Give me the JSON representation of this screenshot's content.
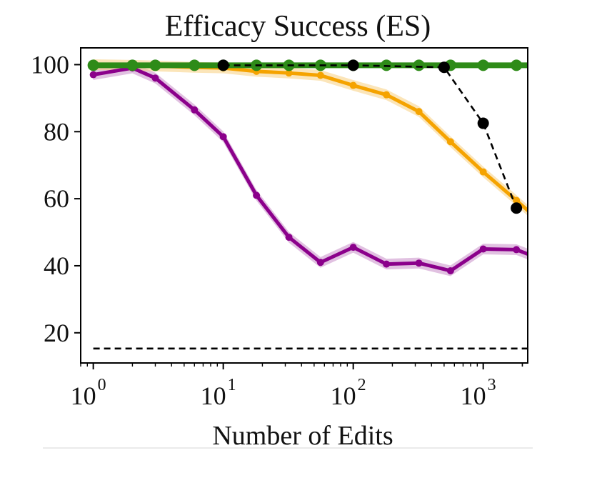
{
  "chart_data": {
    "type": "line",
    "title": "Efficacy Success (ES)",
    "xlabel": "Number of Edits",
    "ylabel": "",
    "xscale": "log",
    "xlim": [
      0.8,
      2200
    ],
    "ylim": [
      11,
      105
    ],
    "grid": false,
    "legend": "none",
    "yticks": [
      {
        "value": 20,
        "label": "20"
      },
      {
        "value": 40,
        "label": "40"
      },
      {
        "value": 60,
        "label": "60"
      },
      {
        "value": 80,
        "label": "80"
      },
      {
        "value": 100,
        "label": "100"
      }
    ],
    "xticks": [
      {
        "value": 1,
        "base": "10",
        "exp": "0"
      },
      {
        "value": 10,
        "base": "10",
        "exp": "1"
      },
      {
        "value": 100,
        "base": "10",
        "exp": "2"
      },
      {
        "value": 1000,
        "base": "10",
        "exp": "3"
      }
    ],
    "series": [
      {
        "color": "#8b008b",
        "band_color": "#c98ec9",
        "style": "solid",
        "markers": true,
        "x": [
          1,
          2,
          3,
          6,
          10,
          18,
          32,
          56,
          100,
          180,
          320,
          560,
          1000,
          1800,
          2200
        ],
        "y": [
          97.0,
          99.0,
          96.0,
          86.5,
          78.5,
          61.0,
          48.5,
          41.0,
          45.5,
          40.5,
          40.8,
          38.5,
          45.0,
          44.8,
          43.5
        ]
      },
      {
        "color": "#f5a300",
        "band_color": "#f8cf80",
        "style": "solid",
        "markers": true,
        "x": [
          1,
          2,
          3,
          6,
          10,
          18,
          32,
          56,
          100,
          180,
          320,
          560,
          1000,
          1800,
          2200
        ],
        "y": [
          100,
          99.8,
          99.6,
          99.2,
          99.0,
          98.0,
          97.5,
          96.8,
          93.8,
          91.0,
          86.0,
          77.0,
          68.0,
          59.5,
          56.5
        ]
      },
      {
        "color": "#2e8b18",
        "style": "solid",
        "markers": true,
        "x": [
          1,
          2,
          3,
          6,
          10,
          18,
          32,
          56,
          100,
          180,
          320,
          560,
          1000,
          1800,
          2200
        ],
        "y": [
          99.8,
          99.8,
          99.8,
          99.8,
          99.8,
          99.8,
          99.8,
          99.8,
          99.8,
          99.8,
          99.8,
          99.8,
          99.8,
          99.8,
          99.8
        ]
      },
      {
        "color": "#000000",
        "style": "dashed",
        "markers": true,
        "x": [
          10,
          100,
          500,
          1000,
          1800
        ],
        "y": [
          99.8,
          99.8,
          99.2,
          82.5,
          57.2
        ]
      },
      {
        "color": "#000000",
        "style": "dashed",
        "markers": false,
        "x": [
          1,
          2200
        ],
        "y": [
          15.3,
          15.3
        ]
      }
    ]
  }
}
